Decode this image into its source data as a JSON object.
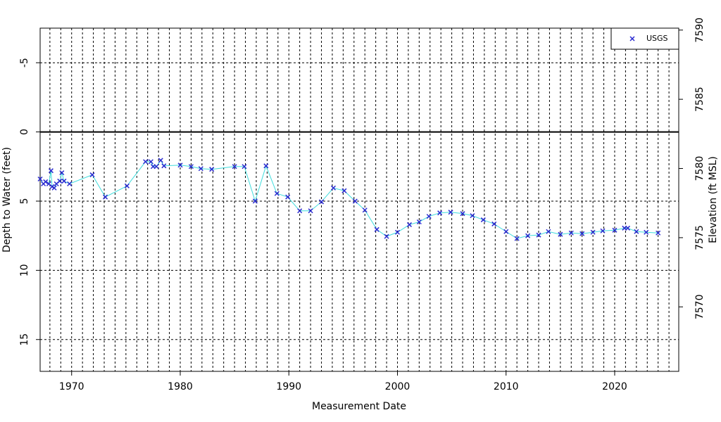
{
  "chart_data": {
    "type": "line",
    "xlabel": "Measurement Date",
    "ylabel": "Depth to Water (feet)",
    "y2label": "Elevation (ft MSL)",
    "xlim": [
      1967.1,
      2025.9
    ],
    "xticks": [
      1970,
      1980,
      1990,
      2000,
      2010,
      2020
    ],
    "xgrid": [
      1968,
      1969,
      1970,
      1971,
      1972,
      1973,
      1974,
      1975,
      1976,
      1977,
      1978,
      1979,
      1980,
      1981,
      1982,
      1983,
      1984,
      1985,
      1986,
      1987,
      1988,
      1989,
      1990,
      1991,
      1992,
      1993,
      1994,
      1995,
      1996,
      1997,
      1998,
      1999,
      2000,
      2001,
      2002,
      2003,
      2004,
      2005,
      2006,
      2007,
      2008,
      2009,
      2010,
      2011,
      2012,
      2013,
      2014,
      2015,
      2016,
      2017,
      2018,
      2019,
      2020,
      2021,
      2022,
      2023,
      2024,
      2025
    ],
    "ylim": [
      17.3,
      -7.5
    ],
    "yticks": [
      -5,
      0,
      5,
      10,
      15
    ],
    "hline": 0,
    "y2lim": [
      7565.34,
      7590.14
    ],
    "y2ticks": [
      7570,
      7575,
      7580,
      7585,
      7590
    ],
    "grid": true,
    "legend": "top-right",
    "series": [
      {
        "name": "USGS",
        "color": "#2a2ad0",
        "line_color": "#3fdcdc",
        "x": [
          1967.1,
          1967.4,
          1967.6,
          1967.9,
          1968.1,
          1968.2,
          1968.4,
          1968.6,
          1968.9,
          1969.1,
          1969.3,
          1969.8,
          1971.9,
          1973.1,
          1975.1,
          1976.8,
          1977.3,
          1977.5,
          1977.8,
          1978.2,
          1978.5,
          1980.0,
          1981.0,
          1981.9,
          1982.9,
          1985.0,
          1985.9,
          1986.9,
          1987.9,
          1988.9,
          1989.9,
          1991.0,
          1992.0,
          1993.0,
          1994.1,
          1995.1,
          1996.1,
          1997.0,
          1998.1,
          1999.0,
          2000.0,
          2001.1,
          2002.0,
          2002.9,
          2003.9,
          2004.9,
          2006.0,
          2006.9,
          2007.9,
          2008.9,
          2010.0,
          2011.0,
          2012.0,
          2013.0,
          2013.9,
          2015.0,
          2016.0,
          2017.0,
          2018.0,
          2018.9,
          2020.0,
          2020.9,
          2021.2,
          2022.0,
          2022.9,
          2024.0
        ],
        "values": [
          3.4,
          3.75,
          3.6,
          3.75,
          2.8,
          3.95,
          4.05,
          3.75,
          3.55,
          2.95,
          3.55,
          3.75,
          3.1,
          4.7,
          3.9,
          2.15,
          2.15,
          2.5,
          2.5,
          2.05,
          2.45,
          2.4,
          2.5,
          2.65,
          2.7,
          2.5,
          2.5,
          5.0,
          2.45,
          4.45,
          4.7,
          5.7,
          5.7,
          5.05,
          4.05,
          4.25,
          5.0,
          5.65,
          7.05,
          7.55,
          7.25,
          6.7,
          6.5,
          6.1,
          5.85,
          5.8,
          5.9,
          6.05,
          6.35,
          6.65,
          7.2,
          7.7,
          7.5,
          7.45,
          7.2,
          7.4,
          7.3,
          7.35,
          7.25,
          7.15,
          7.1,
          6.95,
          6.95,
          7.2,
          7.25,
          7.3
        ]
      }
    ]
  }
}
